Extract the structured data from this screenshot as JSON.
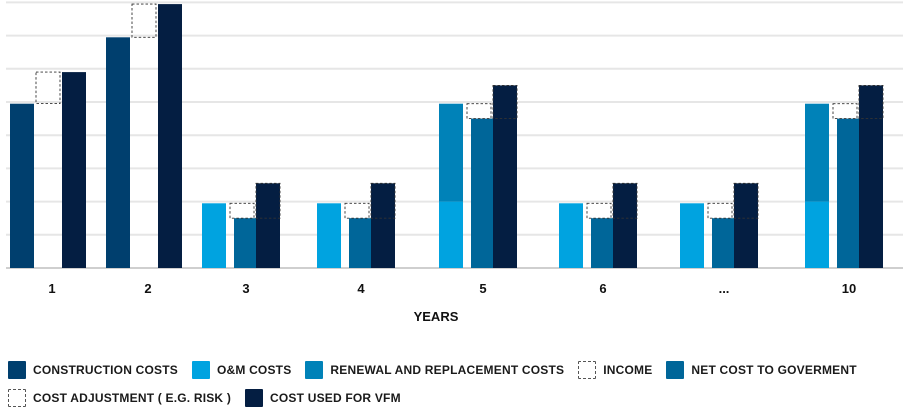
{
  "colors": {
    "construction": "#003f6e",
    "om": "#00a3e0",
    "renewal": "#0082b8",
    "net": "#006699",
    "vfm": "#041e42",
    "grid": "#e6e6e6",
    "dash": "#333333"
  },
  "chart_data": {
    "type": "bar",
    "xlabel": "YEARS",
    "ylabel": "",
    "ylim": [
      0,
      8
    ],
    "grid": true,
    "categories": [
      "1",
      "2",
      "3",
      "4",
      "5",
      "6",
      "...",
      "10"
    ],
    "bars": [
      {
        "category": "1",
        "series": "construction",
        "base": 0,
        "value": 4.95
      },
      {
        "category": "1",
        "series": "income",
        "base": 4.95,
        "value": 0.95
      },
      {
        "category": "1",
        "series": "vfm",
        "base": 0,
        "value": 5.9
      },
      {
        "category": "2",
        "series": "construction",
        "base": 0,
        "value": 6.95
      },
      {
        "category": "2",
        "series": "income",
        "base": 6.95,
        "value": 1.0
      },
      {
        "category": "2",
        "series": "vfm",
        "base": 0,
        "value": 7.95
      },
      {
        "category": "3",
        "series": "om",
        "base": 0,
        "value": 1.95
      },
      {
        "category": "3",
        "series": "income",
        "base": 1.5,
        "value": 0.45
      },
      {
        "category": "3",
        "series": "net",
        "base": 0,
        "value": 1.5
      },
      {
        "category": "3",
        "series": "adjustment",
        "base": 1.5,
        "value": 1.05
      },
      {
        "category": "3",
        "series": "vfm",
        "base": 0,
        "value": 2.55
      },
      {
        "category": "4",
        "series": "om",
        "base": 0,
        "value": 1.95
      },
      {
        "category": "4",
        "series": "income",
        "base": 1.5,
        "value": 0.45
      },
      {
        "category": "4",
        "series": "net",
        "base": 0,
        "value": 1.5
      },
      {
        "category": "4",
        "series": "adjustment",
        "base": 1.5,
        "value": 1.05
      },
      {
        "category": "4",
        "series": "vfm",
        "base": 0,
        "value": 2.55
      },
      {
        "category": "5",
        "series": "om",
        "base": 0,
        "value": 2.0
      },
      {
        "category": "5",
        "series": "renewal",
        "base": 2.0,
        "value": 2.95
      },
      {
        "category": "5",
        "series": "income",
        "base": 4.5,
        "value": 0.45
      },
      {
        "category": "5",
        "series": "net",
        "base": 0,
        "value": 4.5
      },
      {
        "category": "5",
        "series": "adjustment",
        "base": 4.5,
        "value": 1.0
      },
      {
        "category": "5",
        "series": "vfm",
        "base": 0,
        "value": 5.5
      },
      {
        "category": "6",
        "series": "om",
        "base": 0,
        "value": 1.95
      },
      {
        "category": "6",
        "series": "income",
        "base": 1.5,
        "value": 0.45
      },
      {
        "category": "6",
        "series": "net",
        "base": 0,
        "value": 1.5
      },
      {
        "category": "6",
        "series": "adjustment",
        "base": 1.5,
        "value": 1.05
      },
      {
        "category": "6",
        "series": "vfm",
        "base": 0,
        "value": 2.55
      },
      {
        "category": "...",
        "series": "om",
        "base": 0,
        "value": 1.95
      },
      {
        "category": "...",
        "series": "income",
        "base": 1.5,
        "value": 0.45
      },
      {
        "category": "...",
        "series": "net",
        "base": 0,
        "value": 1.5
      },
      {
        "category": "...",
        "series": "adjustment",
        "base": 1.5,
        "value": 1.05
      },
      {
        "category": "...",
        "series": "vfm",
        "base": 0,
        "value": 2.55
      },
      {
        "category": "10",
        "series": "om",
        "base": 0,
        "value": 2.0
      },
      {
        "category": "10",
        "series": "renewal",
        "base": 2.0,
        "value": 2.95
      },
      {
        "category": "10",
        "series": "income",
        "base": 4.5,
        "value": 0.45
      },
      {
        "category": "10",
        "series": "net",
        "base": 0,
        "value": 4.5
      },
      {
        "category": "10",
        "series": "adjustment",
        "base": 4.5,
        "value": 1.0
      },
      {
        "category": "10",
        "series": "vfm",
        "base": 0,
        "value": 5.5
      }
    ],
    "legend": {
      "placement": "bottom",
      "rows": [
        [
          {
            "key": "construction",
            "label": "CONSTRUCTION COSTS"
          },
          {
            "key": "om",
            "label": "O&M COSTS"
          },
          {
            "key": "renewal",
            "label": "RENEWAL AND REPLACEMENT COSTS"
          },
          {
            "key": "income",
            "label": "INCOME"
          },
          {
            "key": "net",
            "label": "NET COST TO GOVERMENT"
          }
        ],
        [
          {
            "key": "adjustment",
            "label": "COST ADJUSTMENT ( E.G. RISK )"
          },
          {
            "key": "vfm",
            "label": "COST USED FOR VFM"
          }
        ]
      ]
    }
  }
}
